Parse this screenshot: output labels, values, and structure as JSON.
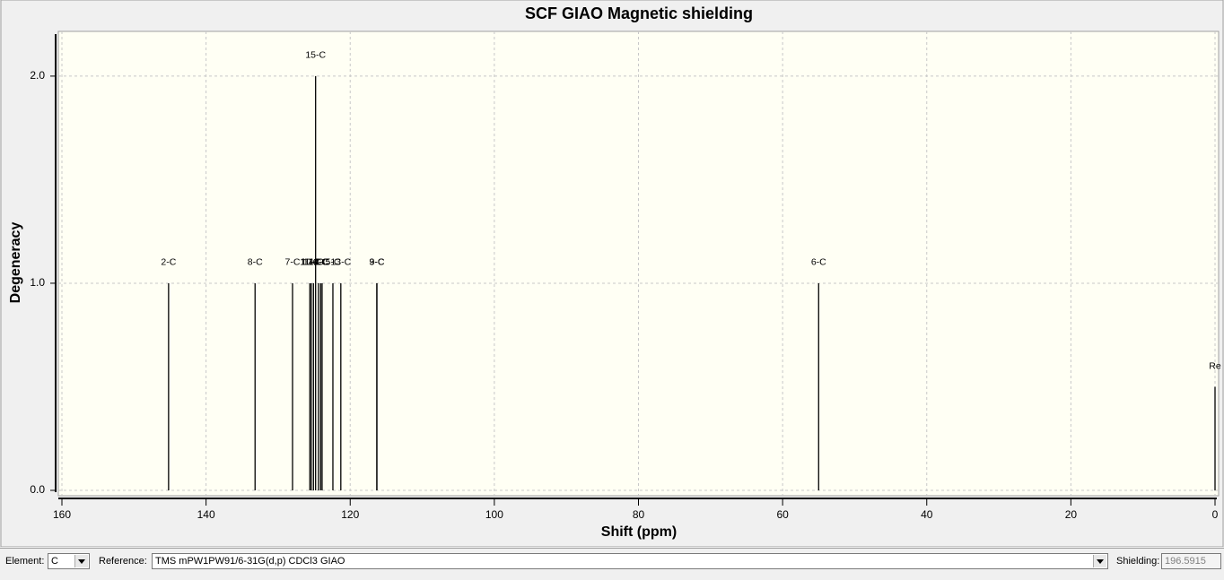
{
  "chart_data": {
    "type": "stick",
    "title": "SCF GIAO Magnetic shielding",
    "xlabel": "Shift (ppm)",
    "ylabel": "Degeneracy",
    "labels": [
      "2-C",
      "8-C",
      "7-C",
      "11-C",
      "10-C",
      "14-C",
      "15-C",
      "12-C",
      "4-C",
      "1-C",
      "5-C",
      "13-C",
      "9-C",
      "3-C",
      "6-C",
      "Re"
    ],
    "x": [
      145.2,
      133.2,
      128.0,
      125.6,
      125.4,
      125.1,
      124.8,
      124.4,
      124.1,
      123.9,
      122.4,
      121.3,
      116.3,
      116.3,
      55.0,
      0.0
    ],
    "values": [
      1,
      1,
      1,
      1,
      1,
      1,
      2,
      1,
      1,
      1,
      1,
      1,
      1,
      1,
      1,
      0.5
    ],
    "color": "#000000",
    "xlim": [
      160,
      0
    ],
    "xticks": [
      160,
      140,
      120,
      100,
      80,
      60,
      40,
      20,
      0
    ],
    "ylim": [
      -0.026,
      2.216
    ],
    "yticks": [
      {
        "value": 0,
        "label": "0.0"
      },
      {
        "value": 1,
        "label": "1.0"
      },
      {
        "value": 2,
        "label": "2.0"
      }
    ],
    "grid": true
  },
  "controls": {
    "element_label": "Element:",
    "element": "C",
    "reference_label": "Reference:",
    "reference": "TMS mPW1PW91/6-31G(d,p) CDCl3 GIAO",
    "shielding_label": "Shielding:",
    "shielding": "196.5915"
  }
}
